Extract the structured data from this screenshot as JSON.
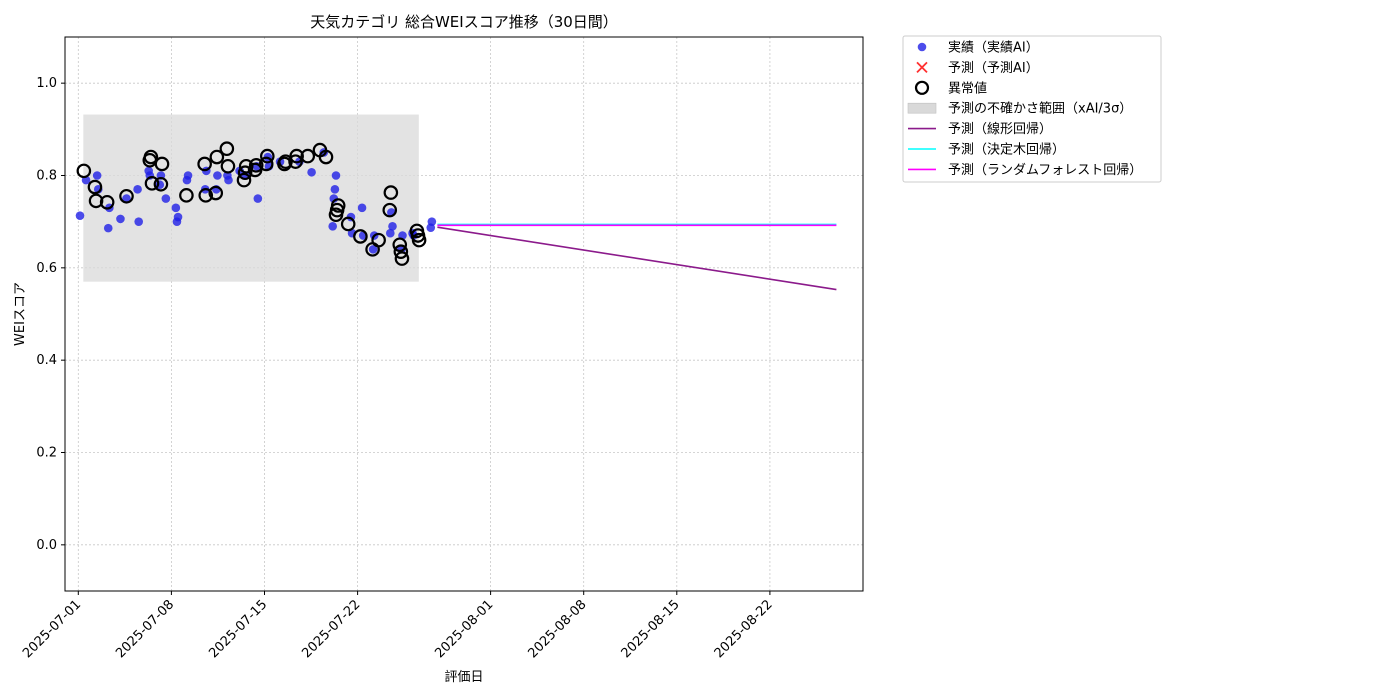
{
  "chart_data": {
    "type": "scatter",
    "title": "天気カテゴリ 総合WEIスコア推移（30日間）",
    "xlabel": "評価日",
    "ylabel": "WEIスコア",
    "ylim": [
      -0.1,
      1.1
    ],
    "yticks": [
      0.0,
      0.2,
      0.4,
      0.6,
      0.8,
      1.0
    ],
    "ytick_labels": [
      "0.0",
      "0.2",
      "0.4",
      "0.6",
      "0.8",
      "1.0"
    ],
    "xlim": [
      "2025-06-30",
      "2025-08-29"
    ],
    "xticks": [
      "2025-07-01",
      "2025-07-08",
      "2025-07-15",
      "2025-07-22",
      "2025-08-01",
      "2025-08-08",
      "2025-08-15",
      "2025-08-22"
    ],
    "grid": true,
    "legend_position": "outside-upper-right",
    "colors": {
      "actual": "#1f1fe6",
      "predicted": "#ff3030",
      "outlier": "#000000",
      "band": "#d9d9d9",
      "linear": "#8b1a8b",
      "tree": "#00ffff",
      "forest": "#ff00ff"
    },
    "uncertainty_band": {
      "x": [
        "2025-07-01",
        "2025-07-26"
      ],
      "y": [
        0.57,
        0.932
      ]
    },
    "series": [
      {
        "name": "実績（実績AI）",
        "kind": "scatter",
        "points": [
          [
            "2025-07-01",
            0.713
          ],
          [
            "2025-07-01",
            0.79
          ],
          [
            "2025-07-02",
            0.77
          ],
          [
            "2025-07-02",
            0.8
          ],
          [
            "2025-07-03",
            0.73
          ],
          [
            "2025-07-03",
            0.686
          ],
          [
            "2025-07-04",
            0.706
          ],
          [
            "2025-07-04",
            0.75
          ],
          [
            "2025-07-05",
            0.7
          ],
          [
            "2025-07-05",
            0.77
          ],
          [
            "2025-07-06",
            0.8
          ],
          [
            "2025-07-06",
            0.81
          ],
          [
            "2025-07-07",
            0.8
          ],
          [
            "2025-07-07",
            0.78
          ],
          [
            "2025-07-07",
            0.75
          ],
          [
            "2025-07-08",
            0.71
          ],
          [
            "2025-07-08",
            0.7
          ],
          [
            "2025-07-08",
            0.73
          ],
          [
            "2025-07-09",
            0.8
          ],
          [
            "2025-07-09",
            0.79
          ],
          [
            "2025-07-10",
            0.81
          ],
          [
            "2025-07-10",
            0.77
          ],
          [
            "2025-07-11",
            0.8
          ],
          [
            "2025-07-11",
            0.77
          ],
          [
            "2025-07-12",
            0.79
          ],
          [
            "2025-07-12",
            0.8
          ],
          [
            "2025-07-13",
            0.81
          ],
          [
            "2025-07-13",
            0.8
          ],
          [
            "2025-07-14",
            0.75
          ],
          [
            "2025-07-14",
            0.82
          ],
          [
            "2025-07-15",
            0.82
          ],
          [
            "2025-07-15",
            0.84
          ],
          [
            "2025-07-16",
            0.83
          ],
          [
            "2025-07-17",
            0.83
          ],
          [
            "2025-07-18",
            0.807
          ],
          [
            "2025-07-19",
            0.85
          ],
          [
            "2025-07-20",
            0.8
          ],
          [
            "2025-07-20",
            0.77
          ],
          [
            "2025-07-20",
            0.75
          ],
          [
            "2025-07-20",
            0.69
          ],
          [
            "2025-07-21",
            0.675
          ],
          [
            "2025-07-21",
            0.71
          ],
          [
            "2025-07-22",
            0.67
          ],
          [
            "2025-07-22",
            0.73
          ],
          [
            "2025-07-23",
            0.67
          ],
          [
            "2025-07-23",
            0.64
          ],
          [
            "2025-07-24",
            0.69
          ],
          [
            "2025-07-24",
            0.72
          ],
          [
            "2025-07-24",
            0.675
          ],
          [
            "2025-07-25",
            0.67
          ],
          [
            "2025-07-25",
            0.64
          ],
          [
            "2025-07-26",
            0.67
          ],
          [
            "2025-07-26",
            0.675
          ],
          [
            "2025-07-27",
            0.7
          ],
          [
            "2025-07-27",
            0.687
          ]
        ]
      },
      {
        "name": "予測（予測AI）",
        "kind": "marker-x",
        "points": []
      },
      {
        "name": "異常値",
        "kind": "ring",
        "points": [
          [
            "2025-07-01",
            0.81
          ],
          [
            "2025-07-02",
            0.745
          ],
          [
            "2025-07-02",
            0.775
          ],
          [
            "2025-07-03",
            0.742
          ],
          [
            "2025-07-04",
            0.755
          ],
          [
            "2025-07-06",
            0.783
          ],
          [
            "2025-07-06",
            0.84
          ],
          [
            "2025-07-06",
            0.833
          ],
          [
            "2025-07-07",
            0.825
          ],
          [
            "2025-07-07",
            0.781
          ],
          [
            "2025-07-09",
            0.757
          ],
          [
            "2025-07-10",
            0.757
          ],
          [
            "2025-07-10",
            0.825
          ],
          [
            "2025-07-11",
            0.84
          ],
          [
            "2025-07-11",
            0.762
          ],
          [
            "2025-07-12",
            0.82
          ],
          [
            "2025-07-12",
            0.858
          ],
          [
            "2025-07-13",
            0.82
          ],
          [
            "2025-07-13",
            0.806
          ],
          [
            "2025-07-13",
            0.79
          ],
          [
            "2025-07-14",
            0.822
          ],
          [
            "2025-07-14",
            0.812
          ],
          [
            "2025-07-15",
            0.842
          ],
          [
            "2025-07-15",
            0.825
          ],
          [
            "2025-07-16",
            0.83
          ],
          [
            "2025-07-16",
            0.825
          ],
          [
            "2025-07-17",
            0.842
          ],
          [
            "2025-07-17",
            0.83
          ],
          [
            "2025-07-18",
            0.842
          ],
          [
            "2025-07-19",
            0.855
          ],
          [
            "2025-07-19",
            0.84
          ],
          [
            "2025-07-20",
            0.735
          ],
          [
            "2025-07-20",
            0.725
          ],
          [
            "2025-07-20",
            0.715
          ],
          [
            "2025-07-21",
            0.695
          ],
          [
            "2025-07-22",
            0.668
          ],
          [
            "2025-07-23",
            0.64
          ],
          [
            "2025-07-23",
            0.66
          ],
          [
            "2025-07-24",
            0.763
          ],
          [
            "2025-07-24",
            0.725
          ],
          [
            "2025-07-25",
            0.62
          ],
          [
            "2025-07-25",
            0.635
          ],
          [
            "2025-07-25",
            0.65
          ],
          [
            "2025-07-26",
            0.66
          ],
          [
            "2025-07-26",
            0.67
          ],
          [
            "2025-07-26",
            0.68
          ]
        ]
      },
      {
        "name": "予測の不確かさ範囲（xAI/3σ）",
        "kind": "band"
      },
      {
        "name": "予測（線形回帰）",
        "kind": "line",
        "points": [
          [
            "2025-07-28",
            0.688
          ],
          [
            "2025-08-27",
            0.553
          ]
        ]
      },
      {
        "name": "予測（決定木回帰）",
        "kind": "line",
        "points": [
          [
            "2025-07-28",
            0.694
          ],
          [
            "2025-08-27",
            0.694
          ]
        ]
      },
      {
        "name": "予測（ランダムフォレスト回帰）",
        "kind": "line",
        "points": [
          [
            "2025-07-28",
            0.692
          ],
          [
            "2025-08-27",
            0.692
          ]
        ]
      }
    ]
  }
}
